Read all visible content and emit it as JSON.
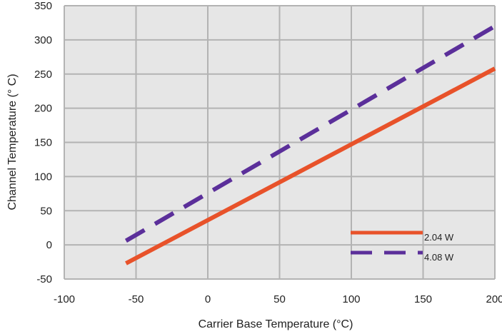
{
  "chart_data": {
    "type": "line",
    "title": "",
    "xlabel": "Carrier Base Temperature (°C)",
    "ylabel": "Channel Temperature (° C)",
    "xlim": [
      -100,
      200
    ],
    "ylim": [
      -50,
      350
    ],
    "xticks": [
      -100,
      -50,
      0,
      50,
      100,
      150,
      200
    ],
    "yticks": [
      -50,
      0,
      50,
      100,
      150,
      200,
      250,
      300,
      350
    ],
    "grid": true,
    "legend_position": "bottom-right",
    "series": [
      {
        "name": "2.04 W",
        "color": "#e8522a",
        "style": "solid",
        "x": [
          -57,
          200
        ],
        "y": [
          -27,
          258
        ]
      },
      {
        "name": "4.08 W",
        "color": "#5b2f9a",
        "style": "dashed",
        "x": [
          -57,
          200
        ],
        "y": [
          6,
          320
        ]
      }
    ]
  }
}
